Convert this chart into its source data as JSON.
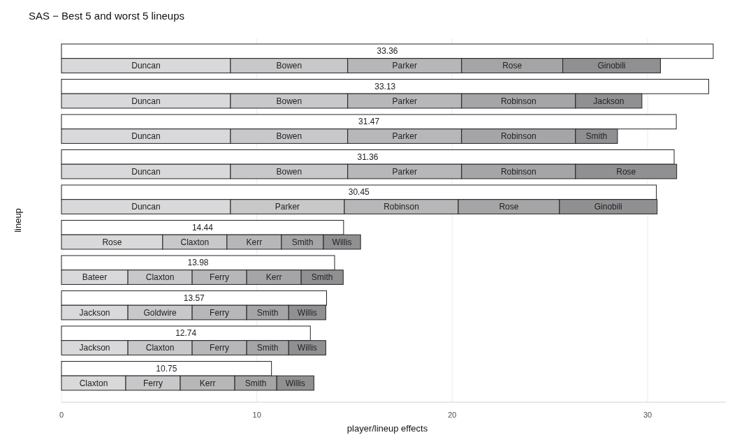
{
  "chart_data": {
    "type": "bar",
    "title": "SAS − Best 5 and worst 5 lineups",
    "xlabel": "player/lineup effects",
    "ylabel": "lineup",
    "orientation": "horizontal",
    "stacked": true,
    "grid": "x",
    "tick_labels": "x",
    "xlim": [
      0,
      34
    ],
    "xticks": [
      0,
      10,
      20,
      30
    ],
    "categories": [
      null,
      null,
      null,
      null,
      null,
      null,
      null,
      null,
      null,
      null,
      null,
      null,
      null,
      null,
      null,
      null,
      null,
      null,
      null,
      null
    ],
    "series": [
      {
        "color": "#ffffff",
        "values": [
          33.36,
          null,
          33.13,
          null,
          31.47,
          null,
          31.36,
          null,
          30.45,
          null,
          14.44,
          null,
          13.98,
          null,
          13.57,
          null,
          12.74,
          null,
          10.75,
          null
        ],
        "value_labels": [
          "33.36",
          null,
          "33.13",
          null,
          "31.47",
          null,
          "31.36",
          null,
          "30.45",
          null,
          "14.44",
          null,
          "13.98",
          null,
          "13.57",
          null,
          "12.74",
          null,
          "10.75",
          null
        ]
      },
      {
        "color": "#d9d9db",
        "values": [
          null,
          8.65,
          null,
          8.65,
          null,
          8.65,
          null,
          8.65,
          null,
          8.65,
          null,
          5.18,
          null,
          3.4,
          null,
          3.4,
          null,
          3.4,
          null,
          3.29
        ],
        "value_labels": [
          null,
          "Duncan",
          null,
          "Duncan",
          null,
          "Duncan",
          null,
          "Duncan",
          null,
          "Duncan",
          null,
          "Rose",
          null,
          "Bateer",
          null,
          "Jackson",
          null,
          "Jackson",
          null,
          "Claxton"
        ]
      },
      {
        "color": "#c8c8cb",
        "values": [
          null,
          6.0,
          null,
          6.0,
          null,
          6.0,
          null,
          6.0,
          null,
          5.83,
          null,
          3.29,
          null,
          3.29,
          null,
          3.29,
          null,
          3.29,
          null,
          2.79
        ],
        "value_labels": [
          null,
          "Bowen",
          null,
          "Bowen",
          null,
          "Bowen",
          null,
          "Bowen",
          null,
          "Parker",
          null,
          "Claxton",
          null,
          "Claxton",
          null,
          "Goldwire",
          null,
          "Claxton",
          null,
          "Ferry"
        ]
      },
      {
        "color": "#b7b7ba",
        "values": [
          null,
          5.83,
          null,
          5.83,
          null,
          5.83,
          null,
          5.83,
          null,
          5.83,
          null,
          2.79,
          null,
          2.79,
          null,
          2.79,
          null,
          2.79,
          null,
          2.79
        ],
        "value_labels": [
          null,
          "Parker",
          null,
          "Parker",
          null,
          "Parker",
          null,
          "Parker",
          null,
          "Robinson",
          null,
          "Kerr",
          null,
          "Ferry",
          null,
          "Ferry",
          null,
          "Ferry",
          null,
          "Kerr"
        ]
      },
      {
        "color": "#a5a5a8",
        "values": [
          null,
          5.18,
          null,
          5.83,
          null,
          5.83,
          null,
          5.83,
          null,
          5.18,
          null,
          2.15,
          null,
          2.79,
          null,
          2.15,
          null,
          2.15,
          null,
          2.15
        ],
        "value_labels": [
          null,
          "Rose",
          null,
          "Robinson",
          null,
          "Robinson",
          null,
          "Robinson",
          null,
          "Rose",
          null,
          "Smith",
          null,
          "Kerr",
          null,
          "Smith",
          null,
          "Smith",
          null,
          "Smith"
        ]
      },
      {
        "color": "#909093",
        "values": [
          null,
          5.0,
          null,
          3.4,
          null,
          2.15,
          null,
          5.18,
          null,
          5.0,
          null,
          1.9,
          null,
          2.15,
          null,
          1.9,
          null,
          1.9,
          null,
          1.9
        ],
        "value_labels": [
          null,
          "Ginobili",
          null,
          "Jackson",
          null,
          "Smith",
          null,
          "Rose",
          null,
          "Ginobili",
          null,
          "Willis",
          null,
          "Smith",
          null,
          "Willis",
          null,
          "Willis",
          null,
          "Willis"
        ]
      }
    ]
  }
}
